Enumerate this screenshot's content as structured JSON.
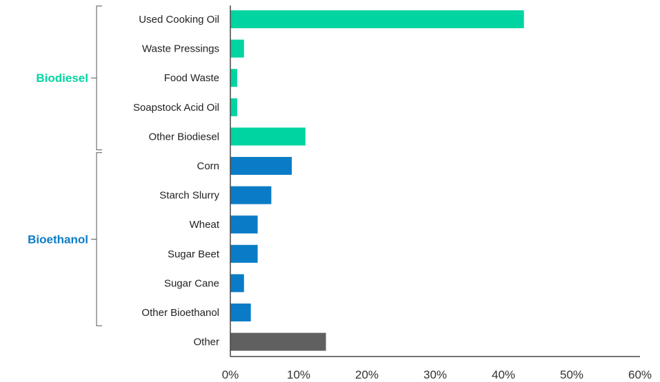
{
  "chart_data": {
    "type": "bar",
    "orientation": "horizontal",
    "title": "",
    "xlabel": "",
    "ylabel": "",
    "xlim": [
      0,
      60
    ],
    "x_ticks": [
      "0%",
      "10%",
      "20%",
      "30%",
      "40%",
      "50%",
      "60%"
    ],
    "grid": false,
    "categories": [
      "Used Cooking Oil",
      "Waste Pressings",
      "Food Waste",
      "Soapstock Acid Oil",
      "Other Biodiesel",
      "Corn",
      "Starch Slurry",
      "Wheat",
      "Sugar Beet",
      "Sugar Cane",
      "Other Bioethanol",
      "Other"
    ],
    "values": [
      43.0,
      2.0,
      1.0,
      1.0,
      11.0,
      9.0,
      6.0,
      4.0,
      4.0,
      2.0,
      3.0,
      14.0
    ],
    "bar_groups": [
      "Biodiesel",
      "Biodiesel",
      "Biodiesel",
      "Biodiesel",
      "Biodiesel",
      "Bioethanol",
      "Bioethanol",
      "Bioethanol",
      "Bioethanol",
      "Bioethanol",
      "Bioethanol",
      "Other"
    ],
    "group_labels": [
      {
        "name": "Biodiesel",
        "color": "#00d4a0",
        "first": 0,
        "last": 4
      },
      {
        "name": "Bioethanol",
        "color": "#0a7cc7",
        "first": 5,
        "last": 10
      }
    ],
    "colors": {
      "Biodiesel": "#00d4a0",
      "Bioethanol": "#0a7cc7",
      "Other": "#606060"
    }
  }
}
